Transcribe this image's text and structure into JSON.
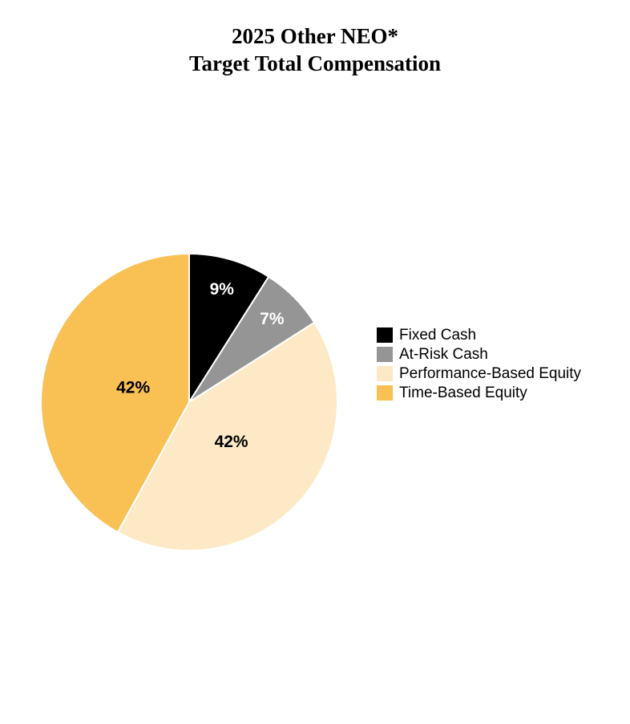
{
  "chart_data": {
    "type": "pie",
    "title": "2025 Other NEO*",
    "subtitle": "Target Total Compensation",
    "legend_position": "right",
    "slices": [
      {
        "label": "Fixed Cash",
        "value": 9,
        "display": "9%",
        "color": "#000000",
        "text_color": "#ffffff"
      },
      {
        "label": "At-Risk Cash",
        "value": 7,
        "display": "7%",
        "color": "#959595",
        "text_color": "#ffffff"
      },
      {
        "label": "Performance-Based Equity",
        "value": 42,
        "display": "42%",
        "color": "#fde9c6",
        "text_color": "#000000"
      },
      {
        "label": "Time-Based Equity",
        "value": 42,
        "display": "42%",
        "color": "#f9c154",
        "text_color": "#000000"
      }
    ]
  }
}
